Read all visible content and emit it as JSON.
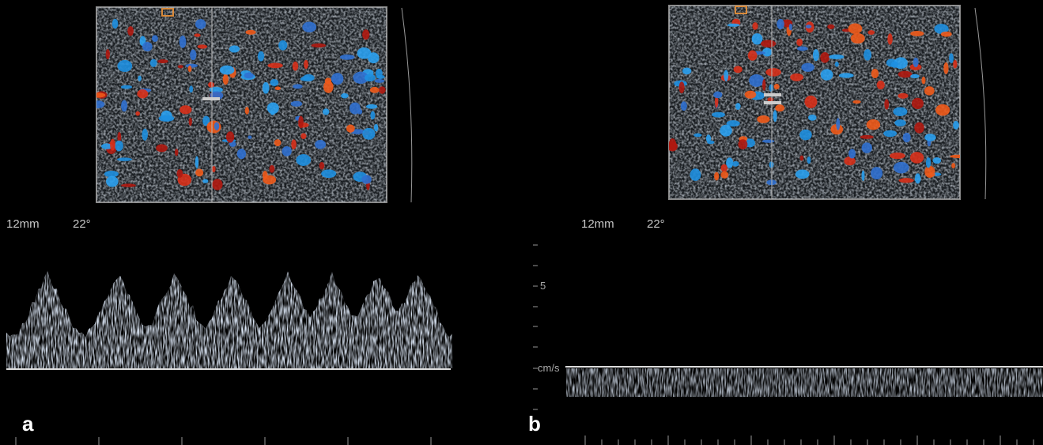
{
  "panels": [
    {
      "label": "a",
      "depth": "12mm",
      "angle": "22°"
    },
    {
      "label": "b",
      "depth": "12mm",
      "angle": "22°",
      "scale_label": "5",
      "unit": "cm/s"
    }
  ]
}
